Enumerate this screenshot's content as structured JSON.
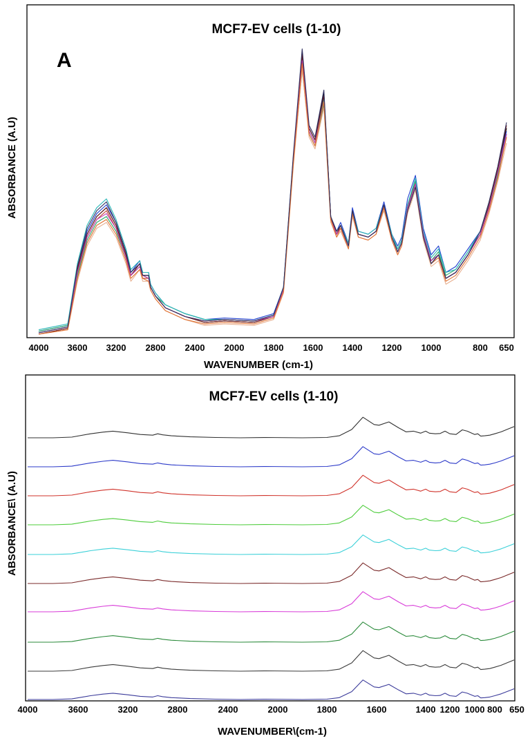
{
  "chart_data": [
    {
      "type": "line",
      "panel_label": "A",
      "title": "MCF7-EV  cells (1-10)",
      "xlabel": "WAVENUMBER (cm-1)",
      "ylabel": "ABSORBANCE  (A.U)",
      "x_reversed": true,
      "xlim": [
        4000,
        650
      ],
      "x_ticks": [
        "4000",
        "3600",
        "3200",
        "2800",
        "2400",
        "2000",
        "1800",
        "1600",
        "1400",
        "1200",
        "1000",
        "800",
        "650"
      ],
      "x_tick_values": [
        4000,
        3600,
        3200,
        2800,
        2400,
        2000,
        1800,
        1600,
        1400,
        1200,
        1000,
        800,
        650
      ],
      "ylim": [
        0,
        1.0
      ],
      "overlay": true,
      "x": [
        4000,
        3700,
        3600,
        3500,
        3400,
        3300,
        3200,
        3100,
        3050,
        2960,
        2930,
        2870,
        2850,
        2800,
        2700,
        2500,
        2300,
        2100,
        1900,
        1800,
        1750,
        1700,
        1655,
        1620,
        1590,
        1545,
        1510,
        1480,
        1460,
        1420,
        1400,
        1370,
        1320,
        1280,
        1240,
        1200,
        1170,
        1150,
        1120,
        1080,
        1040,
        1000,
        970,
        940,
        900,
        850,
        800,
        750,
        700,
        650
      ],
      "series": [
        {
          "color": "#000000",
          "values": [
            0.0,
            0.02,
            0.22,
            0.34,
            0.4,
            0.43,
            0.37,
            0.27,
            0.2,
            0.24,
            0.2,
            0.2,
            0.16,
            0.13,
            0.09,
            0.06,
            0.04,
            0.045,
            0.04,
            0.06,
            0.15,
            0.6,
            0.96,
            0.7,
            0.66,
            0.82,
            0.4,
            0.34,
            0.37,
            0.3,
            0.42,
            0.34,
            0.33,
            0.35,
            0.44,
            0.33,
            0.28,
            0.31,
            0.42,
            0.5,
            0.33,
            0.24,
            0.27,
            0.19,
            0.21,
            0.27,
            0.34,
            0.44,
            0.56,
            0.7
          ]
        },
        {
          "color": "#1f3fcf",
          "values": [
            0.01,
            0.03,
            0.23,
            0.35,
            0.41,
            0.44,
            0.38,
            0.28,
            0.21,
            0.25,
            0.21,
            0.21,
            0.17,
            0.14,
            0.1,
            0.07,
            0.05,
            0.055,
            0.05,
            0.07,
            0.16,
            0.6,
            0.93,
            0.7,
            0.66,
            0.81,
            0.4,
            0.35,
            0.38,
            0.31,
            0.43,
            0.35,
            0.34,
            0.36,
            0.45,
            0.34,
            0.3,
            0.33,
            0.46,
            0.54,
            0.36,
            0.27,
            0.3,
            0.21,
            0.23,
            0.29,
            0.35,
            0.44,
            0.55,
            0.69
          ]
        },
        {
          "color": "#c23b2a",
          "values": [
            0.0,
            0.02,
            0.21,
            0.33,
            0.39,
            0.42,
            0.36,
            0.26,
            0.2,
            0.23,
            0.19,
            0.19,
            0.16,
            0.13,
            0.09,
            0.06,
            0.04,
            0.045,
            0.04,
            0.06,
            0.15,
            0.59,
            0.94,
            0.69,
            0.65,
            0.8,
            0.39,
            0.34,
            0.36,
            0.3,
            0.41,
            0.34,
            0.33,
            0.35,
            0.43,
            0.33,
            0.28,
            0.31,
            0.43,
            0.52,
            0.34,
            0.25,
            0.27,
            0.19,
            0.21,
            0.27,
            0.34,
            0.43,
            0.55,
            0.68
          ]
        },
        {
          "color": "#2aa86a",
          "values": [
            0.01,
            0.03,
            0.2,
            0.32,
            0.38,
            0.4,
            0.35,
            0.26,
            0.2,
            0.23,
            0.2,
            0.19,
            0.16,
            0.13,
            0.1,
            0.07,
            0.05,
            0.05,
            0.045,
            0.065,
            0.15,
            0.58,
            0.9,
            0.68,
            0.64,
            0.78,
            0.39,
            0.34,
            0.36,
            0.3,
            0.41,
            0.34,
            0.33,
            0.35,
            0.42,
            0.33,
            0.29,
            0.32,
            0.44,
            0.52,
            0.34,
            0.25,
            0.28,
            0.2,
            0.22,
            0.28,
            0.34,
            0.43,
            0.54,
            0.67
          ]
        },
        {
          "color": "#2ab7b7",
          "values": [
            0.015,
            0.035,
            0.24,
            0.37,
            0.43,
            0.46,
            0.39,
            0.29,
            0.22,
            0.25,
            0.21,
            0.21,
            0.17,
            0.14,
            0.1,
            0.07,
            0.05,
            0.05,
            0.045,
            0.065,
            0.16,
            0.6,
            0.92,
            0.69,
            0.65,
            0.8,
            0.4,
            0.35,
            0.37,
            0.31,
            0.42,
            0.35,
            0.34,
            0.36,
            0.44,
            0.34,
            0.29,
            0.32,
            0.44,
            0.53,
            0.35,
            0.26,
            0.29,
            0.21,
            0.22,
            0.28,
            0.35,
            0.44,
            0.55,
            0.68
          ]
        },
        {
          "color": "#6a1e1e",
          "values": [
            0.0,
            0.02,
            0.22,
            0.34,
            0.4,
            0.43,
            0.37,
            0.27,
            0.2,
            0.24,
            0.2,
            0.2,
            0.16,
            0.13,
            0.09,
            0.06,
            0.04,
            0.045,
            0.04,
            0.06,
            0.15,
            0.6,
            0.95,
            0.7,
            0.66,
            0.81,
            0.4,
            0.34,
            0.37,
            0.3,
            0.42,
            0.34,
            0.33,
            0.35,
            0.44,
            0.33,
            0.28,
            0.31,
            0.43,
            0.51,
            0.34,
            0.24,
            0.27,
            0.19,
            0.21,
            0.27,
            0.34,
            0.44,
            0.56,
            0.71
          ]
        },
        {
          "color": "#c23bb0",
          "values": [
            0.005,
            0.025,
            0.21,
            0.33,
            0.39,
            0.41,
            0.36,
            0.26,
            0.2,
            0.23,
            0.2,
            0.19,
            0.16,
            0.13,
            0.09,
            0.06,
            0.045,
            0.05,
            0.045,
            0.06,
            0.15,
            0.59,
            0.93,
            0.69,
            0.65,
            0.79,
            0.39,
            0.34,
            0.36,
            0.3,
            0.41,
            0.34,
            0.33,
            0.35,
            0.43,
            0.33,
            0.28,
            0.31,
            0.43,
            0.51,
            0.34,
            0.25,
            0.27,
            0.19,
            0.21,
            0.27,
            0.34,
            0.43,
            0.55,
            0.68
          ]
        },
        {
          "color": "#e8b090",
          "values": [
            0.0,
            0.015,
            0.18,
            0.3,
            0.36,
            0.38,
            0.33,
            0.24,
            0.18,
            0.22,
            0.18,
            0.18,
            0.15,
            0.12,
            0.08,
            0.05,
            0.03,
            0.035,
            0.03,
            0.05,
            0.14,
            0.57,
            0.9,
            0.67,
            0.63,
            0.77,
            0.38,
            0.33,
            0.35,
            0.29,
            0.4,
            0.33,
            0.32,
            0.34,
            0.42,
            0.32,
            0.27,
            0.3,
            0.41,
            0.49,
            0.32,
            0.23,
            0.25,
            0.17,
            0.19,
            0.25,
            0.32,
            0.41,
            0.52,
            0.65
          ]
        },
        {
          "color": "#e07030",
          "values": [
            0.0,
            0.015,
            0.19,
            0.31,
            0.37,
            0.39,
            0.34,
            0.25,
            0.19,
            0.22,
            0.19,
            0.18,
            0.15,
            0.12,
            0.08,
            0.05,
            0.035,
            0.04,
            0.035,
            0.055,
            0.145,
            0.58,
            0.92,
            0.68,
            0.64,
            0.79,
            0.39,
            0.33,
            0.36,
            0.29,
            0.41,
            0.33,
            0.32,
            0.34,
            0.43,
            0.32,
            0.27,
            0.3,
            0.42,
            0.5,
            0.33,
            0.24,
            0.26,
            0.18,
            0.2,
            0.26,
            0.33,
            0.42,
            0.53,
            0.67
          ]
        },
        {
          "color": "#303060",
          "values": [
            0.005,
            0.025,
            0.23,
            0.36,
            0.42,
            0.45,
            0.38,
            0.28,
            0.21,
            0.24,
            0.2,
            0.2,
            0.16,
            0.13,
            0.09,
            0.06,
            0.045,
            0.05,
            0.045,
            0.065,
            0.16,
            0.61,
            0.97,
            0.71,
            0.67,
            0.83,
            0.4,
            0.35,
            0.37,
            0.3,
            0.42,
            0.34,
            0.33,
            0.35,
            0.44,
            0.33,
            0.28,
            0.31,
            0.42,
            0.5,
            0.33,
            0.24,
            0.27,
            0.19,
            0.21,
            0.27,
            0.35,
            0.45,
            0.57,
            0.72
          ]
        }
      ]
    },
    {
      "type": "line",
      "title": "MCF7-EV  cells (1-10)",
      "xlabel": "WAVENUMBER\\(cm-1)",
      "ylabel": "ABSORBANCE\\ (A.U)",
      "x_reversed": true,
      "xlim": [
        4000,
        650
      ],
      "x_ticks": [
        "4000",
        "3600",
        "3200",
        "2800",
        "2400",
        "2000",
        "1800",
        "1600",
        "1400",
        "1200",
        "1000",
        "800",
        "650"
      ],
      "x_tick_values": [
        4000,
        3600,
        3200,
        2800,
        2400,
        2000,
        1800,
        1600,
        1400,
        1200,
        1000,
        800,
        650
      ],
      "stacked_offset": true,
      "x": [
        4000,
        3800,
        3650,
        3500,
        3400,
        3320,
        3200,
        3100,
        3000,
        2960,
        2920,
        2850,
        2700,
        2500,
        2300,
        2100,
        1900,
        1800,
        1750,
        1700,
        1655,
        1610,
        1590,
        1550,
        1510,
        1480,
        1450,
        1420,
        1400,
        1370,
        1320,
        1280,
        1240,
        1200,
        1150,
        1100,
        1060,
        1000,
        970,
        940,
        900,
        850,
        800,
        750,
        700,
        650
      ],
      "profile": [
        0.0,
        0.0,
        0.02,
        0.12,
        0.17,
        0.2,
        0.15,
        0.1,
        0.08,
        0.12,
        0.09,
        0.06,
        0.03,
        0.01,
        0.0,
        0.01,
        0.0,
        0.01,
        0.06,
        0.25,
        0.62,
        0.4,
        0.38,
        0.48,
        0.3,
        0.18,
        0.2,
        0.14,
        0.2,
        0.14,
        0.12,
        0.13,
        0.2,
        0.12,
        0.1,
        0.24,
        0.2,
        0.1,
        0.12,
        0.05,
        0.06,
        0.08,
        0.12,
        0.18,
        0.26,
        0.34
      ],
      "series": [
        {
          "color": "#303030",
          "scale": 1.0
        },
        {
          "color": "#2a38c8",
          "scale": 0.98
        },
        {
          "color": "#d0322a",
          "scale": 1.0
        },
        {
          "color": "#4ccc3a",
          "scale": 0.95
        },
        {
          "color": "#3ad0d8",
          "scale": 0.95
        },
        {
          "color": "#7a2a2a",
          "scale": 1.0
        },
        {
          "color": "#d83ad8",
          "scale": 0.98
        },
        {
          "color": "#2a8a3a",
          "scale": 0.98
        },
        {
          "color": "#3a3a3a",
          "scale": 1.0
        },
        {
          "color": "#3a3a9a",
          "scale": 0.95
        }
      ]
    }
  ]
}
